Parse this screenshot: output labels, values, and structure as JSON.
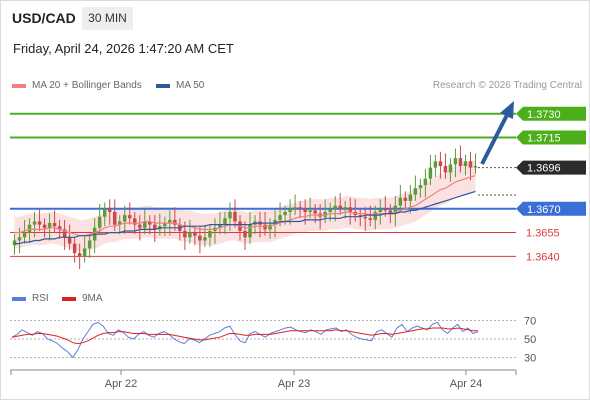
{
  "header": {
    "symbol": "USD/CAD",
    "timeframe": "30 MIN",
    "datetime": "Friday, April 24, 2026 1:47:20 AM CET"
  },
  "legend": {
    "ma20": "MA 20 + Bollinger Bands",
    "ma50": "MA 50",
    "ma20_color": "#f08080",
    "ma50_color": "#2e5a9c",
    "credit": "Research © 2026 Trading Central"
  },
  "rsi_legend": {
    "rsi": "RSI",
    "ma9": "9MA",
    "rsi_color": "#5b7fd8",
    "ma9_color": "#e02020"
  },
  "chart_data": [
    {
      "type": "line",
      "panel": "price",
      "ylim": [
        1.362,
        1.3745
      ],
      "x_ticks": [
        "Apr 22",
        "Apr 23",
        "Apr 24"
      ],
      "levels": [
        {
          "value": 1.373,
          "label": "1.3730",
          "color": "#4caf1a",
          "kind": "resistance"
        },
        {
          "value": 1.3715,
          "label": "1.3715",
          "color": "#4caf1a",
          "kind": "resistance"
        },
        {
          "value": 1.3696,
          "label": "1.3696",
          "color": "#2b2b2b",
          "kind": "last-price"
        },
        {
          "value": 1.367,
          "label": "1.3670",
          "color": "#3a6fd8",
          "kind": "pivot"
        },
        {
          "value": 1.3655,
          "label": "1.3655",
          "color": "#d93b3b",
          "kind": "support"
        },
        {
          "value": 1.364,
          "label": "1.3640",
          "color": "#d93b3b",
          "kind": "support"
        }
      ],
      "closes": [
        1.365,
        1.3652,
        1.3655,
        1.366,
        1.3662,
        1.366,
        1.3658,
        1.3661,
        1.3659,
        1.3657,
        1.3652,
        1.3648,
        1.3642,
        1.364,
        1.3645,
        1.365,
        1.3658,
        1.3665,
        1.367,
        1.3668,
        1.366,
        1.3662,
        1.3666,
        1.3664,
        1.366,
        1.3658,
        1.3662,
        1.366,
        1.3657,
        1.3659,
        1.3661,
        1.3663,
        1.366,
        1.3656,
        1.3652,
        1.3655,
        1.3653,
        1.365,
        1.3652,
        1.3656,
        1.3658,
        1.366,
        1.3664,
        1.3668,
        1.3662,
        1.3656,
        1.3652,
        1.366,
        1.3662,
        1.366,
        1.3657,
        1.366,
        1.3663,
        1.3666,
        1.3668,
        1.367,
        1.3671,
        1.367,
        1.3668,
        1.3669,
        1.3667,
        1.3665,
        1.3668,
        1.367,
        1.3672,
        1.367,
        1.3671,
        1.3668,
        1.3666,
        1.3665,
        1.3664,
        1.3663,
        1.3668,
        1.367,
        1.3669,
        1.3667,
        1.3672,
        1.3677,
        1.3675,
        1.3679,
        1.3683,
        1.3685,
        1.3689,
        1.3696,
        1.37,
        1.3697,
        1.3693,
        1.3698,
        1.3702,
        1.3697,
        1.37,
        1.3696,
        1.3697
      ],
      "ma20": [
        1.3655,
        1.3655,
        1.3656,
        1.3657,
        1.3657,
        1.3657,
        1.3657,
        1.3658,
        1.3658,
        1.3657,
        1.3656,
        1.3655,
        1.3654,
        1.3653,
        1.3653,
        1.3654,
        1.3655,
        1.3656,
        1.3658,
        1.3659,
        1.3659,
        1.366,
        1.3661,
        1.3661,
        1.3661,
        1.3661,
        1.3662,
        1.3662,
        1.3661,
        1.3661,
        1.3661,
        1.3661,
        1.3661,
        1.366,
        1.3659,
        1.3659,
        1.3658,
        1.3657,
        1.3657,
        1.3657,
        1.3657,
        1.3658,
        1.3659,
        1.366,
        1.366,
        1.3659,
        1.3658,
        1.3658,
        1.3659,
        1.3659,
        1.3659,
        1.3659,
        1.366,
        1.3661,
        1.3662,
        1.3663,
        1.3664,
        1.3665,
        1.3665,
        1.3666,
        1.3666,
        1.3666,
        1.3666,
        1.3667,
        1.3667,
        1.3667,
        1.3668,
        1.3668,
        1.3667,
        1.3667,
        1.3667,
        1.3666,
        1.3667,
        1.3667,
        1.3667,
        1.3667,
        1.3668,
        1.3669,
        1.367,
        1.3671,
        1.3672,
        1.3674,
        1.3676,
        1.3678,
        1.368,
        1.3682,
        1.3683,
        1.3685,
        1.3687,
        1.3688,
        1.3689,
        1.369,
        1.3691
      ],
      "ma50": [
        1.3648,
        1.3648,
        1.3649,
        1.3649,
        1.365,
        1.365,
        1.3651,
        1.3651,
        1.3651,
        1.3652,
        1.3652,
        1.3652,
        1.3652,
        1.3653,
        1.3653,
        1.3653,
        1.3654,
        1.3654,
        1.3654,
        1.3655,
        1.3655,
        1.3655,
        1.3656,
        1.3656,
        1.3656,
        1.3657,
        1.3657,
        1.3657,
        1.3657,
        1.3658,
        1.3658,
        1.3658,
        1.3658,
        1.3658,
        1.3659,
        1.3659,
        1.3659,
        1.3659,
        1.3659,
        1.366,
        1.366,
        1.366,
        1.366,
        1.366,
        1.366,
        1.366,
        1.366,
        1.366,
        1.3661,
        1.3661,
        1.3661,
        1.3661,
        1.3661,
        1.3662,
        1.3662,
        1.3662,
        1.3662,
        1.3662,
        1.3663,
        1.3663,
        1.3663,
        1.3663,
        1.3664,
        1.3664,
        1.3664,
        1.3664,
        1.3665,
        1.3665,
        1.3665,
        1.3665,
        1.3666,
        1.3666,
        1.3666,
        1.3666,
        1.3667,
        1.3667,
        1.3667,
        1.3668,
        1.3668,
        1.3669,
        1.3669,
        1.367,
        1.3671,
        1.3672,
        1.3673,
        1.3674,
        1.3675,
        1.3676,
        1.3677,
        1.3678,
        1.3679,
        1.368,
        1.3681
      ],
      "bb_width": 0.001
    },
    {
      "type": "line",
      "panel": "rsi",
      "ylim": [
        25,
        75
      ],
      "y_ticks": [
        "70",
        "50",
        "30"
      ],
      "rsi": [
        52,
        55,
        60,
        57,
        54,
        58,
        56,
        50,
        48,
        45,
        40,
        36,
        30,
        38,
        50,
        58,
        66,
        68,
        64,
        56,
        54,
        60,
        57,
        52,
        50,
        55,
        58,
        54,
        52,
        56,
        58,
        55,
        50,
        47,
        45,
        50,
        49,
        46,
        50,
        54,
        56,
        58,
        62,
        64,
        55,
        48,
        46,
        56,
        58,
        55,
        52,
        56,
        58,
        60,
        62,
        63,
        60,
        58,
        57,
        60,
        58,
        55,
        60,
        61,
        62,
        58,
        60,
        55,
        52,
        50,
        49,
        48,
        58,
        60,
        56,
        52,
        62,
        66,
        58,
        62,
        64,
        62,
        60,
        66,
        68,
        60,
        56,
        62,
        66,
        58,
        62,
        56,
        58
      ],
      "ma9": [
        52,
        53,
        54,
        55,
        55,
        56,
        56,
        55,
        54,
        53,
        51,
        49,
        46,
        45,
        46,
        48,
        51,
        54,
        56,
        57,
        57,
        58,
        58,
        57,
        56,
        56,
        56,
        55,
        55,
        55,
        55,
        55,
        54,
        53,
        52,
        51,
        50,
        49,
        49,
        50,
        51,
        52,
        54,
        56,
        56,
        55,
        54,
        54,
        55,
        55,
        55,
        55,
        56,
        57,
        58,
        59,
        59,
        59,
        59,
        59,
        59,
        59,
        59,
        59,
        60,
        59,
        59,
        58,
        57,
        56,
        55,
        54,
        55,
        56,
        56,
        55,
        56,
        57,
        58,
        59,
        60,
        61,
        61,
        62,
        62,
        62,
        61,
        61,
        62,
        61,
        60,
        59,
        59
      ]
    }
  ]
}
